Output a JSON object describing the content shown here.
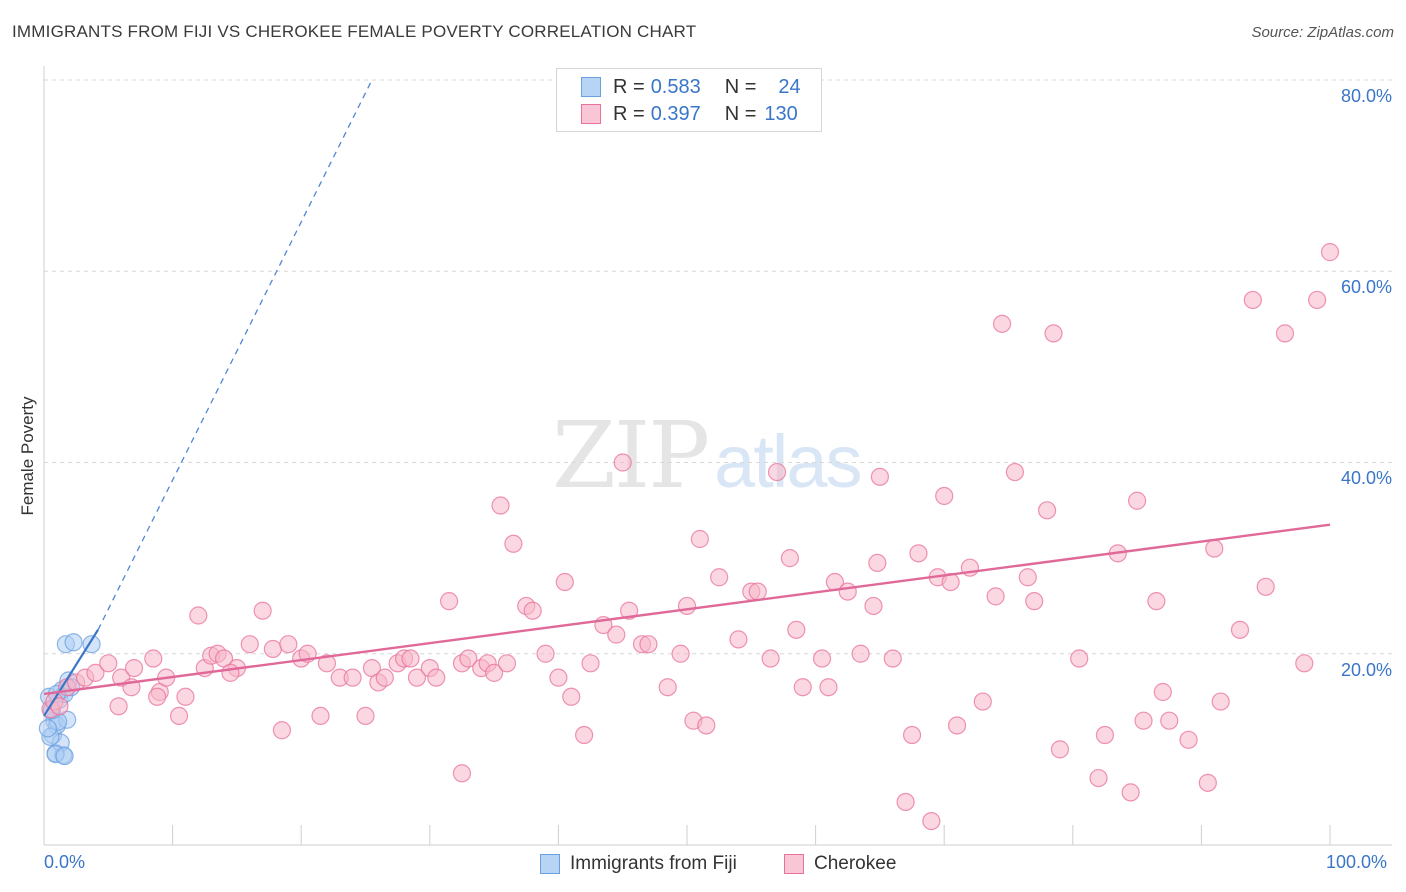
{
  "header": {
    "title": "IMMIGRANTS FROM FIJI VS CHEROKEE FEMALE POVERTY CORRELATION CHART",
    "source": "Source: ZipAtlas.com"
  },
  "watermark": {
    "zip": "ZIP",
    "atlas": "atlas"
  },
  "legend": {
    "series": [
      {
        "r_label": "R =",
        "r_value": "0.583",
        "n_label": "N =",
        "n_value": "24",
        "color": "#9fc4f0"
      },
      {
        "r_label": "R =",
        "r_value": "0.397",
        "n_label": "N =",
        "n_value": "130",
        "color": "#f7b6c9"
      }
    ]
  },
  "bottom_legend": {
    "fiji": "Immigrants from Fiji",
    "cherokee": "Cherokee"
  },
  "axes": {
    "y_label": "Female Poverty",
    "y_ticks": [
      "80.0%",
      "60.0%",
      "40.0%",
      "20.0%"
    ],
    "x_min_label": "0.0%",
    "x_max_label": "100.0%"
  },
  "chart_data": {
    "type": "scatter",
    "title": "IMMIGRANTS FROM FIJI VS CHEROKEE FEMALE POVERTY CORRELATION CHART",
    "xlabel": "",
    "ylabel": "Female Poverty",
    "xlim": [
      0,
      100
    ],
    "ylim": [
      0,
      80
    ],
    "grid": true,
    "series": [
      {
        "name": "Immigrants from Fiji",
        "color": "#6a9fe0",
        "fill": "#aecdf3",
        "r": 0.583,
        "n": 24,
        "trend": {
          "x0": 0,
          "y0": 13.5,
          "x1": 4.2,
          "y1": 22.5,
          "dash_to_x": 25.5,
          "dash_to_y": 80.0
        },
        "points": [
          [
            0.4,
            15.5
          ],
          [
            0.6,
            14.0
          ],
          [
            0.7,
            11.5
          ],
          [
            0.8,
            13.0
          ],
          [
            1.0,
            12.5
          ],
          [
            1.2,
            15.2
          ],
          [
            1.4,
            16.2
          ],
          [
            1.6,
            15.8
          ],
          [
            1.9,
            17.2
          ],
          [
            2.1,
            16.5
          ],
          [
            0.9,
            9.6
          ],
          [
            1.5,
            9.4
          ],
          [
            1.3,
            10.7
          ],
          [
            1.8,
            13.1
          ],
          [
            1.1,
            12.9
          ],
          [
            0.5,
            11.3
          ],
          [
            1.7,
            21.0
          ],
          [
            2.3,
            21.2
          ],
          [
            3.7,
            21.0
          ],
          [
            0.3,
            12.2
          ],
          [
            0.9,
            9.5
          ],
          [
            1.6,
            9.3
          ],
          [
            0.6,
            14.1
          ],
          [
            1.0,
            15.8
          ]
        ]
      },
      {
        "name": "Cherokee",
        "color": "#e8729c",
        "fill": "#f7b6c9",
        "r": 0.397,
        "n": 130,
        "trend": {
          "x0": 0,
          "y0": 15.8,
          "x1": 100,
          "y1": 33.5
        },
        "points": [
          [
            0.5,
            14.2
          ],
          [
            0.8,
            15.0
          ],
          [
            1.2,
            14.5
          ],
          [
            1.8,
            16.5
          ],
          [
            2.5,
            17.0
          ],
          [
            3.2,
            17.5
          ],
          [
            4.0,
            18.0
          ],
          [
            5.0,
            19.0
          ],
          [
            6.0,
            17.5
          ],
          [
            7.0,
            18.5
          ],
          [
            8.5,
            19.5
          ],
          [
            9.0,
            16.0
          ],
          [
            5.8,
            14.5
          ],
          [
            6.8,
            16.5
          ],
          [
            8.8,
            15.5
          ],
          [
            9.5,
            17.5
          ],
          [
            10.5,
            13.5
          ],
          [
            11.0,
            15.5
          ],
          [
            12.0,
            24.0
          ],
          [
            12.5,
            18.5
          ],
          [
            13.0,
            19.8
          ],
          [
            13.5,
            20.0
          ],
          [
            14.0,
            19.5
          ],
          [
            15.0,
            18.5
          ],
          [
            16.0,
            21.0
          ],
          [
            17.0,
            24.5
          ],
          [
            14.5,
            18.0
          ],
          [
            17.8,
            20.5
          ],
          [
            18.5,
            12.0
          ],
          [
            19.0,
            21.0
          ],
          [
            20.0,
            19.5
          ],
          [
            20.5,
            20.0
          ],
          [
            21.5,
            13.5
          ],
          [
            22.0,
            19.0
          ],
          [
            23.0,
            17.5
          ],
          [
            24.0,
            17.5
          ],
          [
            25.0,
            13.5
          ],
          [
            25.5,
            18.5
          ],
          [
            26.0,
            17.0
          ],
          [
            26.5,
            17.5
          ],
          [
            27.5,
            19.0
          ],
          [
            28.0,
            19.5
          ],
          [
            28.5,
            19.5
          ],
          [
            29.0,
            17.5
          ],
          [
            30.0,
            18.5
          ],
          [
            30.5,
            17.5
          ],
          [
            31.5,
            25.5
          ],
          [
            32.5,
            7.5
          ],
          [
            32.5,
            19.0
          ],
          [
            33.0,
            19.5
          ],
          [
            34.0,
            18.5
          ],
          [
            34.5,
            19.0
          ],
          [
            35.0,
            18.0
          ],
          [
            35.5,
            35.5
          ],
          [
            36.0,
            19.0
          ],
          [
            36.5,
            31.5
          ],
          [
            37.5,
            25.0
          ],
          [
            38.0,
            24.5
          ],
          [
            39.0,
            20.0
          ],
          [
            40.0,
            17.5
          ],
          [
            40.5,
            27.5
          ],
          [
            41.0,
            15.5
          ],
          [
            42.0,
            11.5
          ],
          [
            42.5,
            19.0
          ],
          [
            43.5,
            23.0
          ],
          [
            44.5,
            22.0
          ],
          [
            45.0,
            40.0
          ],
          [
            45.5,
            24.5
          ],
          [
            46.5,
            21.0
          ],
          [
            47.0,
            21.0
          ],
          [
            48.5,
            16.5
          ],
          [
            49.5,
            20.0
          ],
          [
            50.0,
            25.0
          ],
          [
            50.5,
            13.0
          ],
          [
            51.0,
            32.0
          ],
          [
            51.5,
            12.5
          ],
          [
            52.5,
            28.0
          ],
          [
            54.0,
            21.5
          ],
          [
            55.0,
            26.5
          ],
          [
            55.5,
            26.5
          ],
          [
            56.5,
            19.5
          ],
          [
            57.0,
            39.0
          ],
          [
            58.0,
            30.0
          ],
          [
            58.5,
            22.5
          ],
          [
            59.0,
            16.5
          ],
          [
            60.5,
            19.5
          ],
          [
            61.0,
            16.5
          ],
          [
            61.5,
            27.5
          ],
          [
            62.5,
            26.5
          ],
          [
            63.5,
            20.0
          ],
          [
            64.5,
            25.0
          ],
          [
            64.8,
            29.5
          ],
          [
            65.0,
            38.5
          ],
          [
            66.0,
            19.5
          ],
          [
            67.0,
            4.5
          ],
          [
            67.5,
            11.5
          ],
          [
            68.0,
            30.5
          ],
          [
            69.0,
            2.5
          ],
          [
            69.5,
            28.0
          ],
          [
            70.0,
            36.5
          ],
          [
            70.5,
            27.5
          ],
          [
            71.0,
            12.5
          ],
          [
            72.0,
            29.0
          ],
          [
            73.0,
            15.0
          ],
          [
            74.0,
            26.0
          ],
          [
            74.5,
            54.5
          ],
          [
            75.5,
            39.0
          ],
          [
            76.5,
            28.0
          ],
          [
            77.0,
            25.5
          ],
          [
            78.0,
            35.0
          ],
          [
            78.5,
            53.5
          ],
          [
            79.0,
            10.0
          ],
          [
            80.5,
            19.5
          ],
          [
            82.0,
            7.0
          ],
          [
            82.5,
            11.5
          ],
          [
            83.5,
            30.5
          ],
          [
            84.5,
            5.5
          ],
          [
            85.0,
            36.0
          ],
          [
            85.5,
            13.0
          ],
          [
            86.5,
            25.5
          ],
          [
            87.0,
            16.0
          ],
          [
            87.5,
            13.0
          ],
          [
            89.0,
            11.0
          ],
          [
            90.5,
            6.5
          ],
          [
            91.0,
            31.0
          ],
          [
            91.5,
            15.0
          ],
          [
            93.0,
            22.5
          ],
          [
            94.0,
            57.0
          ],
          [
            95.0,
            27.0
          ],
          [
            96.5,
            53.5
          ],
          [
            98.0,
            19.0
          ],
          [
            99.0,
            57.0
          ],
          [
            100.0,
            62.0
          ]
        ]
      }
    ]
  }
}
